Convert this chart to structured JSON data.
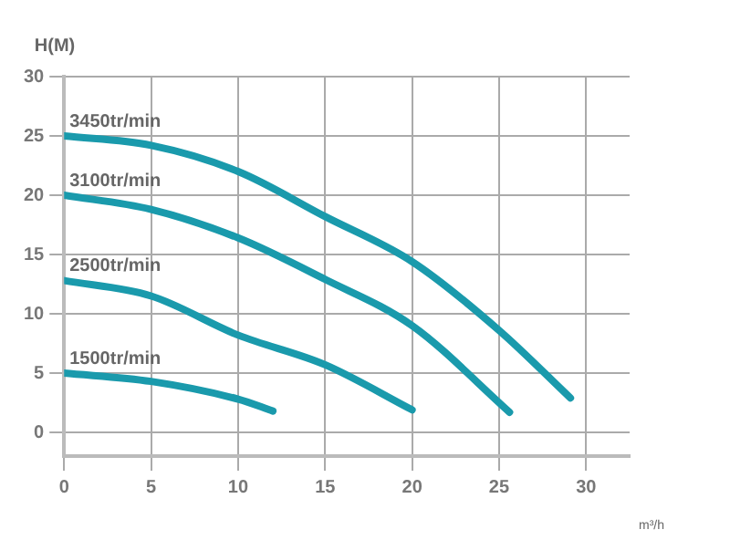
{
  "chart_data": {
    "type": "line",
    "xlabel": "m³/h",
    "ylabel": "H(M)",
    "xlim": [
      0,
      32.5
    ],
    "ylim": [
      -2,
      30
    ],
    "xticks": [
      0,
      5,
      10,
      15,
      20,
      25,
      30
    ],
    "yticks": [
      0,
      5,
      10,
      15,
      20,
      25,
      30
    ],
    "grid": true,
    "legend": false,
    "marker": "none",
    "line_style": "solid",
    "series": [
      {
        "name": "3450tr/min",
        "color": "#1a9aac",
        "x": [
          0,
          5,
          10,
          15,
          20,
          25,
          29.1
        ],
        "values": [
          25,
          24.2,
          22,
          18.2,
          14.4,
          8.6,
          2.9
        ]
      },
      {
        "name": "3100tr/min",
        "color": "#1a9aac",
        "x": [
          0,
          5,
          10,
          15,
          20,
          25.6
        ],
        "values": [
          20,
          18.8,
          16.4,
          12.9,
          9,
          1.7
        ]
      },
      {
        "name": "2500tr/min",
        "color": "#1a9aac",
        "x": [
          0,
          5,
          10,
          15,
          20
        ],
        "values": [
          12.8,
          11.5,
          8.2,
          5.7,
          1.9
        ]
      },
      {
        "name": "1500tr/min",
        "color": "#1a9aac",
        "x": [
          0,
          5,
          10,
          12
        ],
        "values": [
          5,
          4.3,
          2.8,
          1.8
        ]
      }
    ]
  }
}
